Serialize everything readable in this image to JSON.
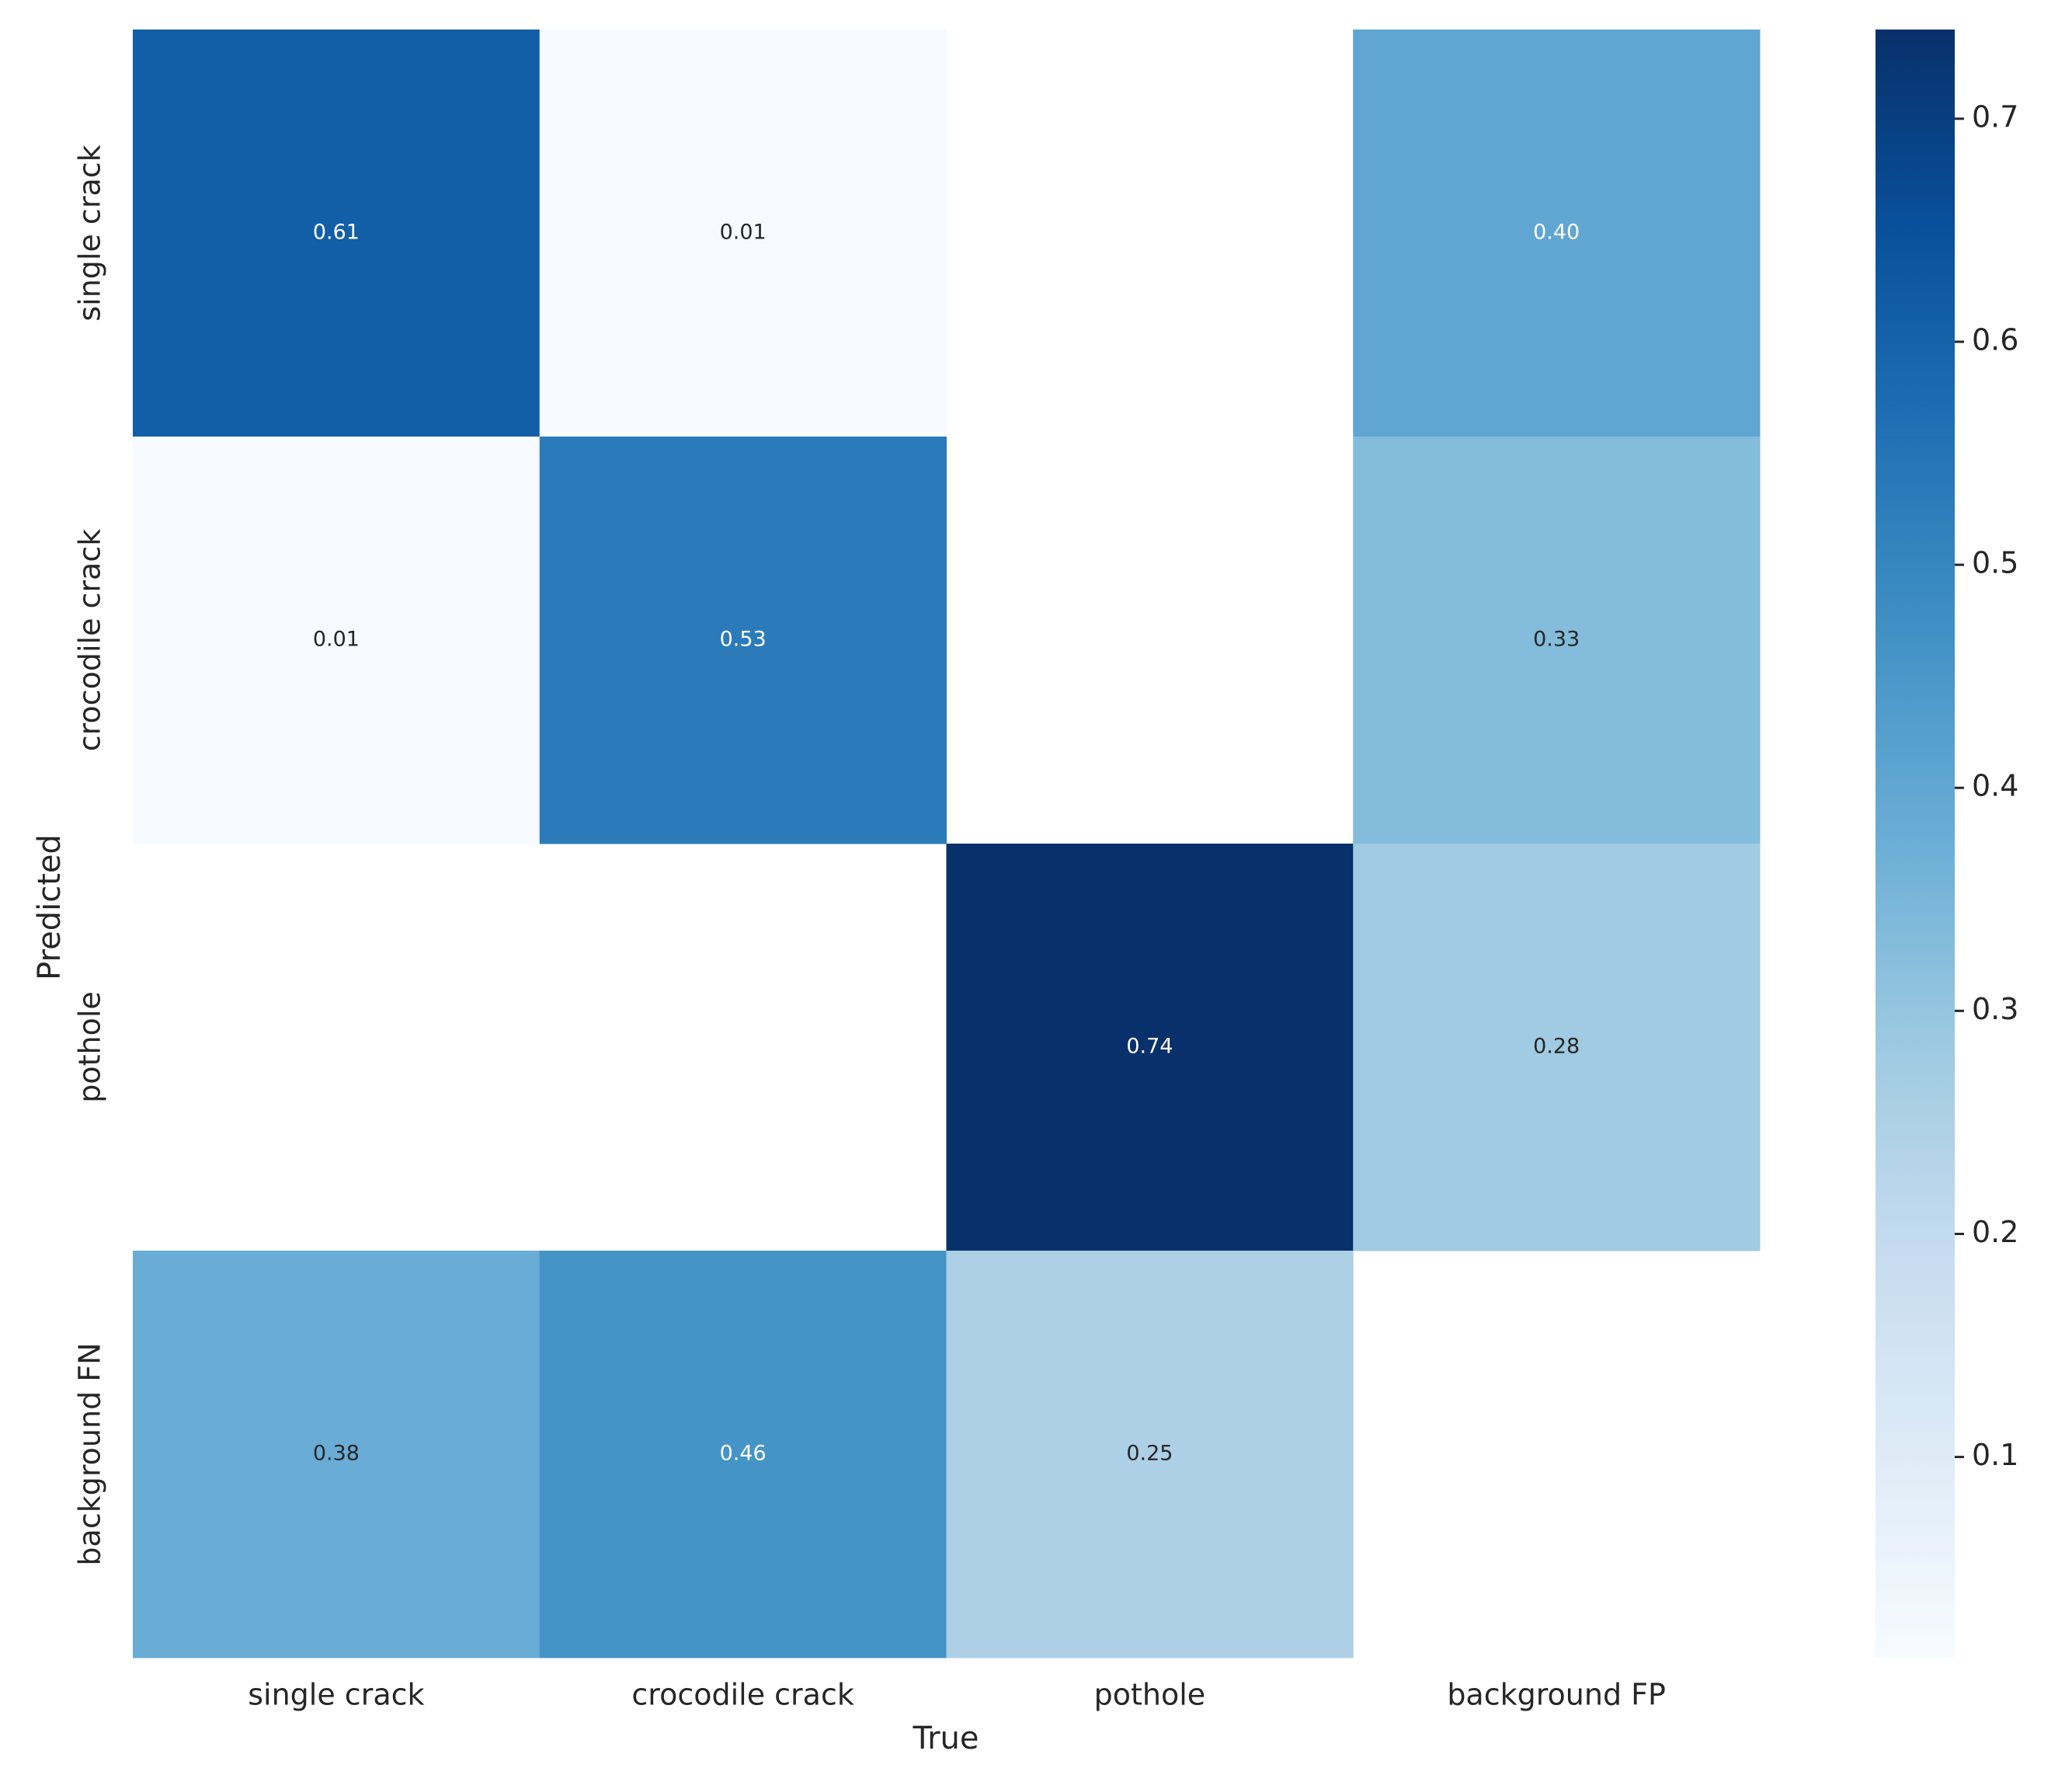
{
  "chart_data": {
    "type": "heatmap",
    "x_categories": [
      "single crack",
      "crocodile crack",
      "pothole",
      "background FP"
    ],
    "y_categories": [
      "single crack",
      "crocodile crack",
      "pothole",
      "background FN"
    ],
    "xlabel": "True",
    "ylabel": "Predicted",
    "values": [
      [
        0.61,
        0.01,
        null,
        0.4
      ],
      [
        0.01,
        0.53,
        null,
        0.33
      ],
      [
        null,
        null,
        0.74,
        0.28
      ],
      [
        0.38,
        0.46,
        0.25,
        null
      ]
    ],
    "value_labels": [
      [
        "0.61",
        "0.01",
        null,
        "0.40"
      ],
      [
        "0.01",
        "0.53",
        null,
        "0.33"
      ],
      [
        null,
        null,
        "0.74",
        "0.28"
      ],
      [
        "0.38",
        "0.46",
        "0.25",
        null
      ]
    ],
    "colormap": [
      "#f7fbff",
      "#deebf7",
      "#c6dbef",
      "#9ecae1",
      "#6baed6",
      "#4292c6",
      "#2171b5",
      "#08519c",
      "#08306b"
    ],
    "clim": [
      0.01,
      0.74
    ],
    "cticks": [
      0.1,
      0.2,
      0.3,
      0.4,
      0.5,
      0.6,
      0.7
    ]
  }
}
